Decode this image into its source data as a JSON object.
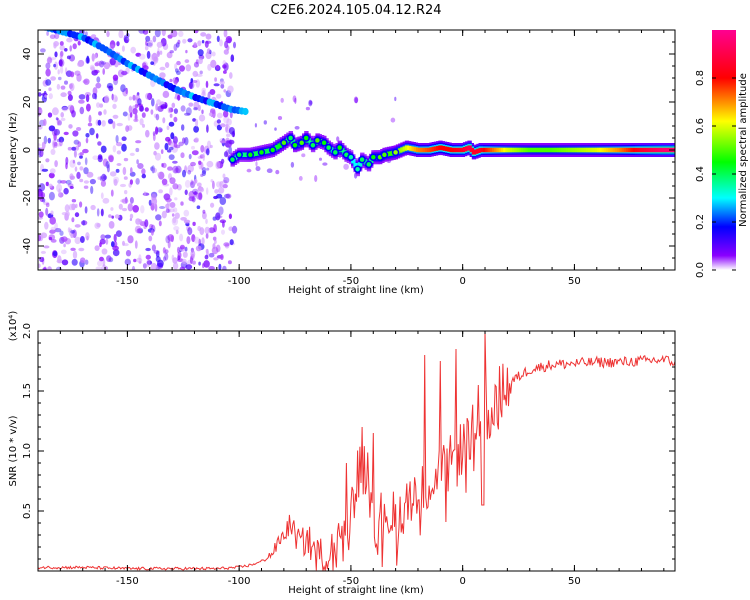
{
  "title": "C2E6.2024.105.04.12.R24",
  "chart_data": [
    {
      "type": "heatmap",
      "title": "C2E6.2024.105.04.12.R24",
      "xlabel": "Height of straight line (km)",
      "ylabel": "Frequency (Hz)",
      "xlim": [
        -190,
        95
      ],
      "ylim": [
        -50,
        50
      ],
      "xticks": [
        -150,
        -100,
        -50,
        0,
        50
      ],
      "xtick_labels": [
        "-150",
        "-100",
        "-50",
        "0",
        "50"
      ],
      "yticks": [
        -40,
        -20,
        0,
        20,
        40
      ],
      "ytick_labels": [
        "-40",
        "-20",
        "0",
        "20",
        "40"
      ],
      "colorbar": {
        "label": "Normalized spectral amplitude",
        "range": [
          0,
          1
        ],
        "ticks": [
          0.0,
          0.2,
          0.4,
          0.6,
          0.8
        ],
        "tick_labels": [
          "0.0",
          "0.2",
          "0.4",
          "0.6",
          "0.8"
        ],
        "colormap": [
          "#ffffff",
          "#8a00ff",
          "#0000ff",
          "#00ffff",
          "#00ff00",
          "#ffff00",
          "#ff0000",
          "#ff0090"
        ]
      },
      "ridge": {
        "x": [
          -190,
          -170,
          -160,
          -150,
          -140,
          -130,
          -120,
          -110,
          -104,
          -97
        ],
        "y": [
          52,
          47,
          42,
          36,
          31,
          26,
          22,
          19,
          17,
          16
        ]
      },
      "trace": {
        "x": [
          -103,
          -100,
          -95,
          -90,
          -85,
          -80,
          -77,
          -75,
          -72,
          -70,
          -67,
          -65,
          -62,
          -60,
          -57,
          -55,
          -52,
          -50,
          -47,
          -45,
          -42,
          -40,
          -37,
          -35,
          -30,
          -25,
          -20,
          -15,
          -10,
          -5,
          0,
          3,
          5,
          8,
          10,
          20,
          30,
          40,
          50,
          60,
          70,
          80,
          90,
          95
        ],
        "y": [
          -4,
          -2,
          -2,
          -1,
          0,
          3,
          5,
          2,
          3,
          5,
          2,
          4,
          3,
          1,
          -1,
          1,
          -2,
          -3,
          -8,
          -4,
          -6,
          -3,
          -3,
          -2,
          -1,
          1,
          0,
          0,
          1,
          0,
          0,
          1,
          -1,
          0,
          0,
          0,
          0,
          0,
          0,
          0,
          0,
          0,
          0,
          0
        ],
        "amplitude": [
          0.35,
          0.35,
          0.4,
          0.4,
          0.4,
          0.45,
          0.35,
          0.4,
          0.45,
          0.4,
          0.35,
          0.45,
          0.4,
          0.35,
          0.35,
          0.4,
          0.35,
          0.3,
          0.3,
          0.35,
          0.35,
          0.4,
          0.45,
          0.45,
          0.5,
          0.6,
          0.7,
          0.75,
          0.8,
          0.8,
          0.85,
          0.9,
          0.85,
          0.85,
          0.8,
          0.6,
          0.5,
          0.5,
          0.55,
          0.6,
          0.7,
          0.85,
          0.95,
          0.95
        ]
      }
    },
    {
      "type": "line",
      "xlabel": "Height of straight line (km)",
      "ylabel": "SNR (10 * v/v)",
      "y_scale_label": "(x10⁴)",
      "xlim": [
        -190,
        95
      ],
      "ylim": [
        0,
        2.0
      ],
      "xticks": [
        -150,
        -100,
        -50,
        0,
        50
      ],
      "xtick_labels": [
        "-150",
        "-100",
        "-50",
        "0",
        "50"
      ],
      "yticks": [
        0.5,
        1.0,
        1.5,
        2.0
      ],
      "ytick_labels": [
        "0.5",
        "1.0",
        "1.5",
        "2.0"
      ],
      "color": "#ee3333",
      "series": [
        {
          "x": [
            -190,
            -170,
            -150,
            -130,
            -110,
            -100,
            -95,
            -90,
            -85,
            -82,
            -80,
            -77,
            -75,
            -72,
            -70,
            -65,
            -60,
            -55,
            -52,
            -50,
            -48,
            -45,
            -42,
            -40,
            -38,
            -35,
            -30,
            -25,
            -22,
            -20,
            -18,
            -15,
            -12,
            -10,
            -8,
            -5,
            -2,
            0,
            2,
            5,
            8,
            10,
            12,
            15,
            20,
            25,
            30,
            40,
            50,
            60,
            70,
            80,
            90,
            95
          ],
          "y": [
            0.03,
            0.03,
            0.02,
            0.02,
            0.02,
            0.03,
            0.05,
            0.08,
            0.15,
            0.25,
            0.3,
            0.4,
            0.3,
            0.22,
            0.28,
            0.12,
            0.1,
            0.3,
            0.7,
            0.5,
            0.75,
            0.85,
            0.9,
            0.6,
            0.3,
            0.55,
            0.4,
            0.6,
            0.7,
            0.55,
            0.65,
            0.75,
            0.78,
            0.85,
            0.8,
            0.9,
            0.95,
            1.05,
            1.1,
            1.15,
            1.2,
            1.35,
            1.3,
            1.45,
            1.55,
            1.62,
            1.68,
            1.72,
            1.73,
            1.74,
            1.74,
            1.75,
            1.76,
            1.74
          ]
        }
      ],
      "spikes": {
        "x": [
          -52,
          -45,
          -40,
          -17,
          -10,
          -3,
          7,
          10
        ],
        "y": [
          0.9,
          1.2,
          1.15,
          1.8,
          1.75,
          1.85,
          1.55,
          2.0
        ]
      }
    }
  ]
}
